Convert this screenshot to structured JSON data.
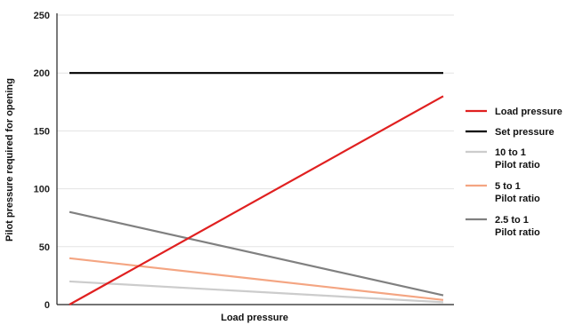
{
  "chart_data": {
    "type": "line",
    "xlabel": "Load pressure",
    "ylabel": "Pilot pressure required for opening",
    "ylim": [
      0,
      250
    ],
    "yticks": [
      0,
      50,
      100,
      150,
      200,
      250
    ],
    "grid": "horizontal",
    "legend_position": "right",
    "series": [
      {
        "key": "load",
        "name": "Load pressure",
        "label_lines": [
          "Load pressure"
        ],
        "color": "#e02020",
        "y_start": 0,
        "y_end": 180
      },
      {
        "key": "set",
        "name": "Set pressure",
        "label_lines": [
          "Set pressure"
        ],
        "color": "#000000",
        "y_start": 200,
        "y_end": 200
      },
      {
        "key": "r10",
        "name": "10 to 1 Pilot ratio",
        "label_lines": [
          "10 to 1",
          "Pilot ratio"
        ],
        "color": "#cccccc",
        "y_start": 20,
        "y_end": 2
      },
      {
        "key": "r5",
        "name": "5 to 1 Pilot ratio",
        "label_lines": [
          "5 to 1",
          "Pilot ratio"
        ],
        "color": "#f4a582",
        "y_start": 40,
        "y_end": 4
      },
      {
        "key": "r25",
        "name": "2.5 to 1 Pilot ratio",
        "label_lines": [
          "2.5 to 1",
          "Pilot ratio"
        ],
        "color": "#808080",
        "y_start": 80,
        "y_end": 8
      }
    ]
  }
}
